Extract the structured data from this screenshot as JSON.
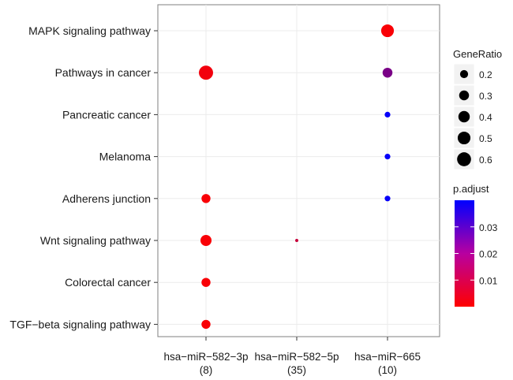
{
  "chart_data": {
    "type": "scatter",
    "title": "",
    "xlabel": "",
    "ylabel": "",
    "x_categories": [
      {
        "name": "hsa−miR−582−3p",
        "count": "(8)"
      },
      {
        "name": "hsa−miR−582−5p",
        "count": "(35)"
      },
      {
        "name": "hsa−miR−665",
        "count": "(10)"
      }
    ],
    "y_categories": [
      "MAPK signaling pathway",
      "Pathways in cancer",
      "Pancreatic cancer",
      "Melanoma",
      "Adherens junction",
      "Wnt signaling pathway",
      "Colorectal cancer",
      "TGF−beta signaling pathway"
    ],
    "points": [
      {
        "x": "hsa−miR−582−3p",
        "y": "Pathways in cancer",
        "gene_ratio": 0.62,
        "p_adjust": 0.002
      },
      {
        "x": "hsa−miR−582−3p",
        "y": "Adherens junction",
        "gene_ratio": 0.25,
        "p_adjust": 0.001
      },
      {
        "x": "hsa−miR−582−3p",
        "y": "Wnt signaling pathway",
        "gene_ratio": 0.38,
        "p_adjust": 0.001
      },
      {
        "x": "hsa−miR−582−3p",
        "y": "Colorectal cancer",
        "gene_ratio": 0.25,
        "p_adjust": 0.001
      },
      {
        "x": "hsa−miR−582−3p",
        "y": "TGF−beta signaling pathway",
        "gene_ratio": 0.25,
        "p_adjust": 0.001
      },
      {
        "x": "hsa−miR−582−5p",
        "y": "Wnt signaling pathway",
        "gene_ratio": 0.03,
        "p_adjust": 0.009
      },
      {
        "x": "hsa−miR−665",
        "y": "MAPK signaling pathway",
        "gene_ratio": 0.5,
        "p_adjust": 0.001
      },
      {
        "x": "hsa−miR−665",
        "y": "Pathways in cancer",
        "gene_ratio": 0.3,
        "p_adjust": 0.021
      },
      {
        "x": "hsa−miR−665",
        "y": "Pancreatic cancer",
        "gene_ratio": 0.1,
        "p_adjust": 0.039
      },
      {
        "x": "hsa−miR−665",
        "y": "Melanoma",
        "gene_ratio": 0.1,
        "p_adjust": 0.039
      },
      {
        "x": "hsa−miR−665",
        "y": "Adherens junction",
        "gene_ratio": 0.1,
        "p_adjust": 0.039
      }
    ],
    "size_legend": {
      "title": "GeneRatio",
      "values": [
        0.2,
        0.3,
        0.4,
        0.5,
        0.6
      ],
      "labels": [
        "0.2",
        "0.3",
        "0.4",
        "0.5",
        "0.6"
      ]
    },
    "color_legend": {
      "title": "p.adjust",
      "range": [
        0.0,
        0.04
      ],
      "ticks": [
        0.01,
        0.02,
        0.03
      ],
      "tick_labels": [
        "0.01",
        "0.02",
        "0.03"
      ],
      "low_color": "#ff0000",
      "high_color": "#0000ff"
    },
    "grid": true,
    "legend_position": "right"
  }
}
